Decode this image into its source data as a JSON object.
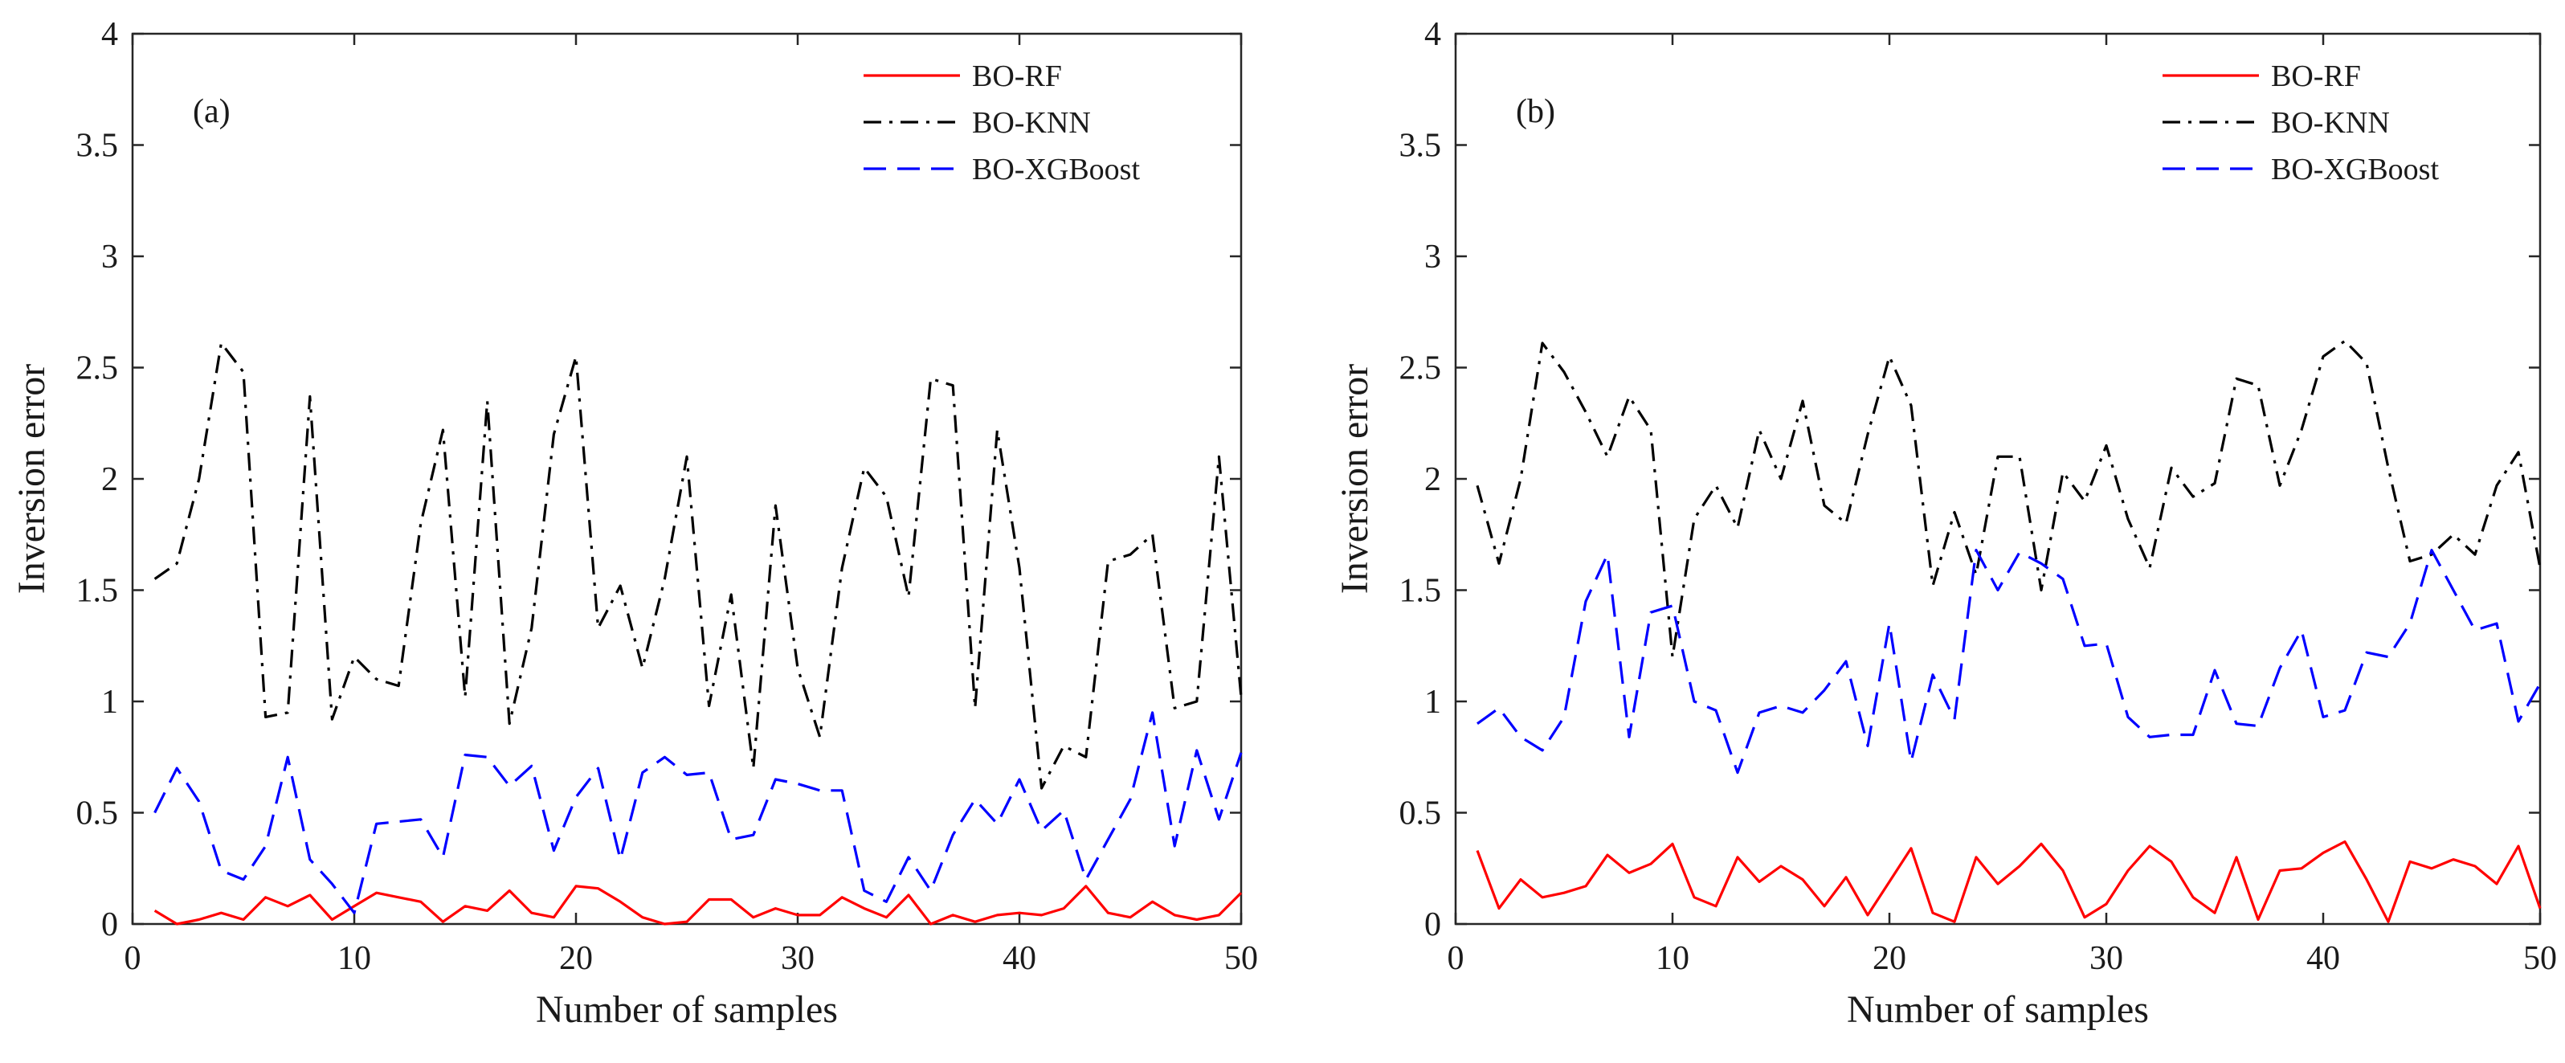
{
  "chart_data": [
    {
      "type": "line",
      "panel_label": "(a)",
      "xlabel": "Number of samples",
      "ylabel": "Inversion error",
      "xlim": [
        0,
        50
      ],
      "ylim": [
        0,
        4
      ],
      "xticks": [
        0,
        10,
        20,
        30,
        40,
        50
      ],
      "yticks": [
        0,
        0.5,
        1,
        1.5,
        2,
        2.5,
        3,
        3.5,
        4
      ],
      "ytick_labels": [
        "0",
        "0.5",
        "1",
        "1.5",
        "2",
        "2.5",
        "3",
        "3.5",
        "4"
      ],
      "legend_position": "top-right",
      "x": [
        1,
        2,
        3,
        4,
        5,
        6,
        7,
        8,
        9,
        10,
        11,
        12,
        13,
        14,
        15,
        16,
        17,
        18,
        19,
        20,
        21,
        22,
        23,
        24,
        25,
        26,
        27,
        28,
        29,
        30,
        31,
        32,
        33,
        34,
        35,
        36,
        37,
        38,
        39,
        40,
        41,
        42,
        43,
        44,
        45,
        46,
        47,
        48,
        49,
        50
      ],
      "series": [
        {
          "name": "BO-RF",
          "color": "#ff0000",
          "style": "solid",
          "values": [
            0.06,
            0.0,
            0.02,
            0.05,
            0.02,
            0.12,
            0.08,
            0.13,
            0.02,
            0.08,
            0.14,
            0.12,
            0.1,
            0.01,
            0.08,
            0.06,
            0.15,
            0.05,
            0.03,
            0.17,
            0.16,
            0.1,
            0.03,
            0.0,
            0.01,
            0.11,
            0.11,
            0.03,
            0.07,
            0.04,
            0.04,
            0.12,
            0.07,
            0.03,
            0.13,
            0.0,
            0.04,
            0.01,
            0.04,
            0.05,
            0.04,
            0.07,
            0.17,
            0.05,
            0.03,
            0.1,
            0.04,
            0.02,
            0.04,
            0.14
          ]
        },
        {
          "name": "BO-KNN",
          "color": "#000000",
          "style": "dashdot",
          "values": [
            1.55,
            1.62,
            2.0,
            2.61,
            2.48,
            0.93,
            0.95,
            2.37,
            0.92,
            1.2,
            1.1,
            1.07,
            1.8,
            2.22,
            1.02,
            2.35,
            0.9,
            1.33,
            2.2,
            2.55,
            1.33,
            1.52,
            1.15,
            1.55,
            2.1,
            0.98,
            1.48,
            0.7,
            1.88,
            1.15,
            0.84,
            1.6,
            2.05,
            1.92,
            1.47,
            2.45,
            2.42,
            0.97,
            2.22,
            1.6,
            0.61,
            0.8,
            0.75,
            1.63,
            1.66,
            1.75,
            0.97,
            1.0,
            2.1,
            1.02
          ]
        },
        {
          "name": "BO-XGBoost",
          "color": "#0000ff",
          "style": "dashed",
          "values": [
            0.5,
            0.7,
            0.55,
            0.24,
            0.2,
            0.35,
            0.75,
            0.29,
            0.18,
            0.05,
            0.45,
            0.46,
            0.47,
            0.3,
            0.76,
            0.75,
            0.62,
            0.71,
            0.33,
            0.57,
            0.7,
            0.29,
            0.68,
            0.75,
            0.67,
            0.68,
            0.38,
            0.4,
            0.65,
            0.63,
            0.6,
            0.6,
            0.15,
            0.1,
            0.3,
            0.15,
            0.4,
            0.56,
            0.45,
            0.65,
            0.42,
            0.51,
            0.2,
            0.38,
            0.56,
            0.95,
            0.35,
            0.78,
            0.47,
            0.77
          ]
        }
      ]
    },
    {
      "type": "line",
      "panel_label": "(b)",
      "xlabel": "Number of samples",
      "ylabel": "Inversion error",
      "xlim": [
        0,
        50
      ],
      "ylim": [
        0,
        4
      ],
      "xticks": [
        0,
        10,
        20,
        30,
        40,
        50
      ],
      "yticks": [
        0,
        0.5,
        1,
        1.5,
        2,
        2.5,
        3,
        3.5,
        4
      ],
      "ytick_labels": [
        "0",
        "0.5",
        "1",
        "1.5",
        "2",
        "2.5",
        "3",
        "3.5",
        "4"
      ],
      "legend_position": "top-right",
      "x": [
        1,
        2,
        3,
        4,
        5,
        6,
        7,
        8,
        9,
        10,
        11,
        12,
        13,
        14,
        15,
        16,
        17,
        18,
        19,
        20,
        21,
        22,
        23,
        24,
        25,
        26,
        27,
        28,
        29,
        30,
        31,
        32,
        33,
        34,
        35,
        36,
        37,
        38,
        39,
        40,
        41,
        42,
        43,
        44,
        45,
        46,
        47,
        48,
        49,
        50
      ],
      "series": [
        {
          "name": "BO-RF",
          "color": "#ff0000",
          "style": "solid",
          "values": [
            0.33,
            0.07,
            0.2,
            0.12,
            0.14,
            0.17,
            0.31,
            0.23,
            0.27,
            0.36,
            0.12,
            0.08,
            0.3,
            0.19,
            0.26,
            0.2,
            0.08,
            0.21,
            0.04,
            0.19,
            0.34,
            0.05,
            0.01,
            0.3,
            0.18,
            0.26,
            0.36,
            0.24,
            0.03,
            0.09,
            0.24,
            0.35,
            0.28,
            0.12,
            0.05,
            0.3,
            0.02,
            0.24,
            0.25,
            0.32,
            0.37,
            0.2,
            0.01,
            0.28,
            0.25,
            0.29,
            0.26,
            0.18,
            0.35,
            0.07
          ]
        },
        {
          "name": "BO-KNN",
          "color": "#000000",
          "style": "dashdot",
          "values": [
            1.97,
            1.62,
            2.0,
            2.61,
            2.48,
            2.3,
            2.1,
            2.37,
            2.22,
            1.2,
            1.82,
            1.97,
            1.78,
            2.22,
            2.0,
            2.35,
            1.88,
            1.8,
            2.2,
            2.55,
            2.33,
            1.52,
            1.85,
            1.57,
            2.1,
            2.1,
            1.5,
            2.03,
            1.9,
            2.15,
            1.82,
            1.6,
            2.05,
            1.92,
            1.98,
            2.45,
            2.42,
            1.97,
            2.22,
            2.55,
            2.62,
            2.52,
            2.05,
            1.63,
            1.66,
            1.75,
            1.66,
            1.97,
            2.12,
            1.6
          ]
        },
        {
          "name": "BO-XGBoost",
          "color": "#0000ff",
          "style": "dashed",
          "values": [
            0.9,
            0.97,
            0.84,
            0.78,
            0.93,
            1.45,
            1.66,
            0.84,
            1.4,
            1.43,
            1.0,
            0.96,
            0.68,
            0.95,
            0.98,
            0.95,
            1.05,
            1.18,
            0.8,
            1.35,
            0.73,
            1.12,
            0.92,
            1.68,
            1.5,
            1.67,
            1.62,
            1.55,
            1.25,
            1.26,
            0.93,
            0.84,
            0.85,
            0.85,
            1.14,
            0.9,
            0.89,
            1.15,
            1.32,
            0.93,
            0.96,
            1.22,
            1.2,
            1.35,
            1.68,
            1.5,
            1.32,
            1.35,
            0.91,
            1.08
          ]
        }
      ]
    }
  ]
}
